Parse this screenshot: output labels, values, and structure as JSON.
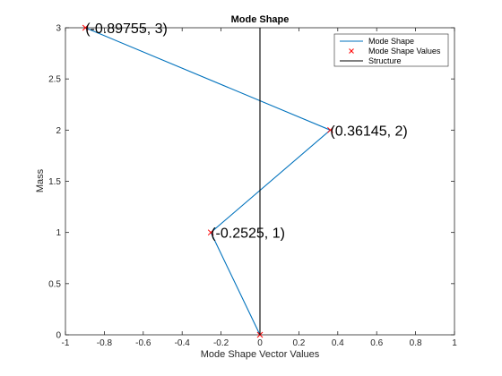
{
  "chart_data": {
    "type": "line",
    "title": "Mode Shape",
    "xlabel": "Mode Shape Vector Values",
    "ylabel": "Mass",
    "xlim": [
      -1,
      1
    ],
    "ylim": [
      0,
      3
    ],
    "xticks": [
      "-1",
      "-0.8",
      "-0.6",
      "-0.4",
      "-0.2",
      "0",
      "0.2",
      "0.4",
      "0.6",
      "0.8",
      "1"
    ],
    "yticks": [
      "0",
      "0.5",
      "1",
      "1.5",
      "2",
      "2.5",
      "3"
    ],
    "series": [
      {
        "name": "Mode Shape",
        "style": "line",
        "color": "#0072BD",
        "x": [
          0,
          -0.2525,
          0.36145,
          -0.89755
        ],
        "y": [
          0,
          1,
          2,
          3
        ]
      },
      {
        "name": "Mode Shape Values",
        "style": "marker-x",
        "color": "#ff0000",
        "x": [
          0,
          -0.2525,
          0.36145,
          -0.89755
        ],
        "y": [
          0,
          1,
          2,
          3
        ]
      },
      {
        "name": "Structure",
        "style": "line",
        "color": "#000000",
        "x": [
          0,
          0
        ],
        "y": [
          0,
          3
        ]
      }
    ],
    "annotations": [
      {
        "text": "(-0.2525, 1)",
        "x": -0.2525,
        "y": 1
      },
      {
        "text": "(0.36145, 2)",
        "x": 0.36145,
        "y": 2
      },
      {
        "text": "(-0.89755, 3)",
        "x": -0.89755,
        "y": 3
      }
    ],
    "legend_position": "top-right",
    "grid": false
  }
}
